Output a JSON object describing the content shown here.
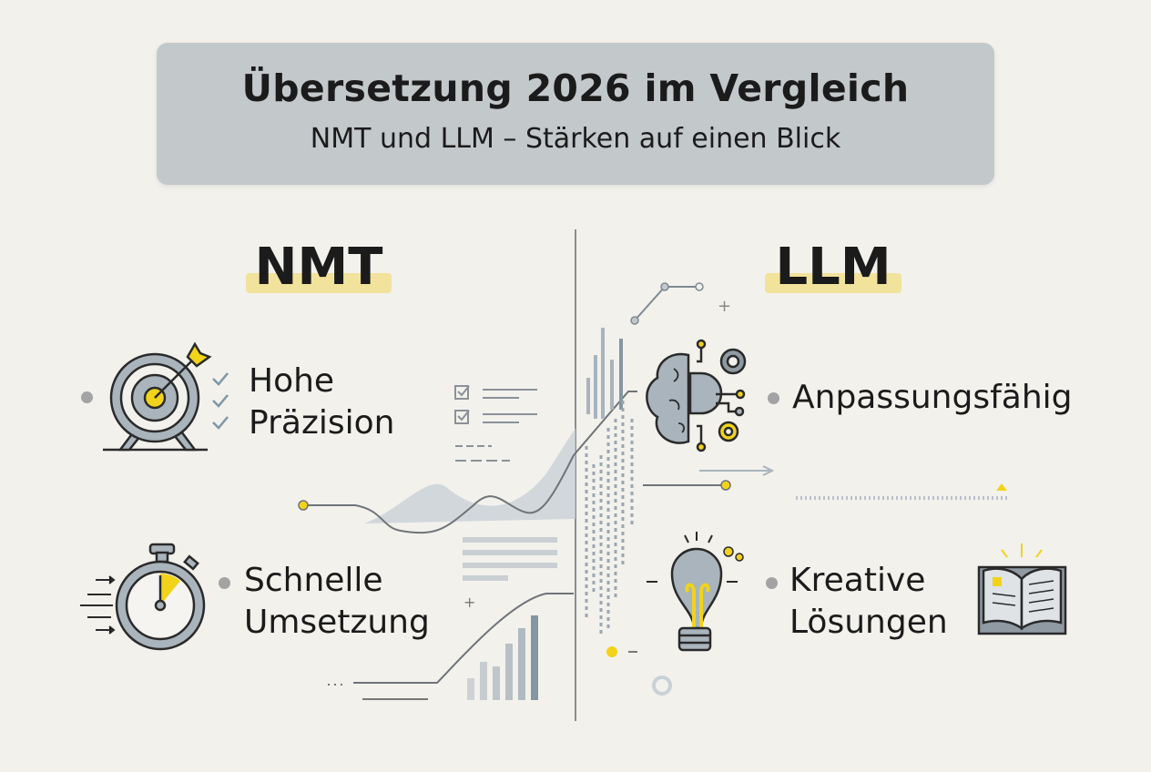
{
  "header": {
    "title": "Übersetzung 2026 im Vergleich",
    "subtitle": "NMT und LLM – Stärken auf einen Blick"
  },
  "columns": [
    {
      "label": "NMT",
      "items": [
        {
          "line1": "Hohe",
          "line2": "Präzision",
          "icon": "target-arrow-icon"
        },
        {
          "line1": "Schnelle",
          "line2": "Umsetzung",
          "icon": "stopwatch-icon"
        }
      ]
    },
    {
      "label": "LLM",
      "items": [
        {
          "line1": "Anpassungsfähig",
          "line2": "",
          "icon": "brain-gears-icon"
        },
        {
          "line1": "Kreative",
          "line2": "Lösungen",
          "icon": "lightbulb-icon"
        }
      ]
    }
  ],
  "colors": {
    "background": "#f2f1ec",
    "header": "#c3c8cb",
    "accent_yellow": "#f2d31b",
    "highlight": "#f1e39c",
    "icon_gray": "#a9b4bc"
  }
}
